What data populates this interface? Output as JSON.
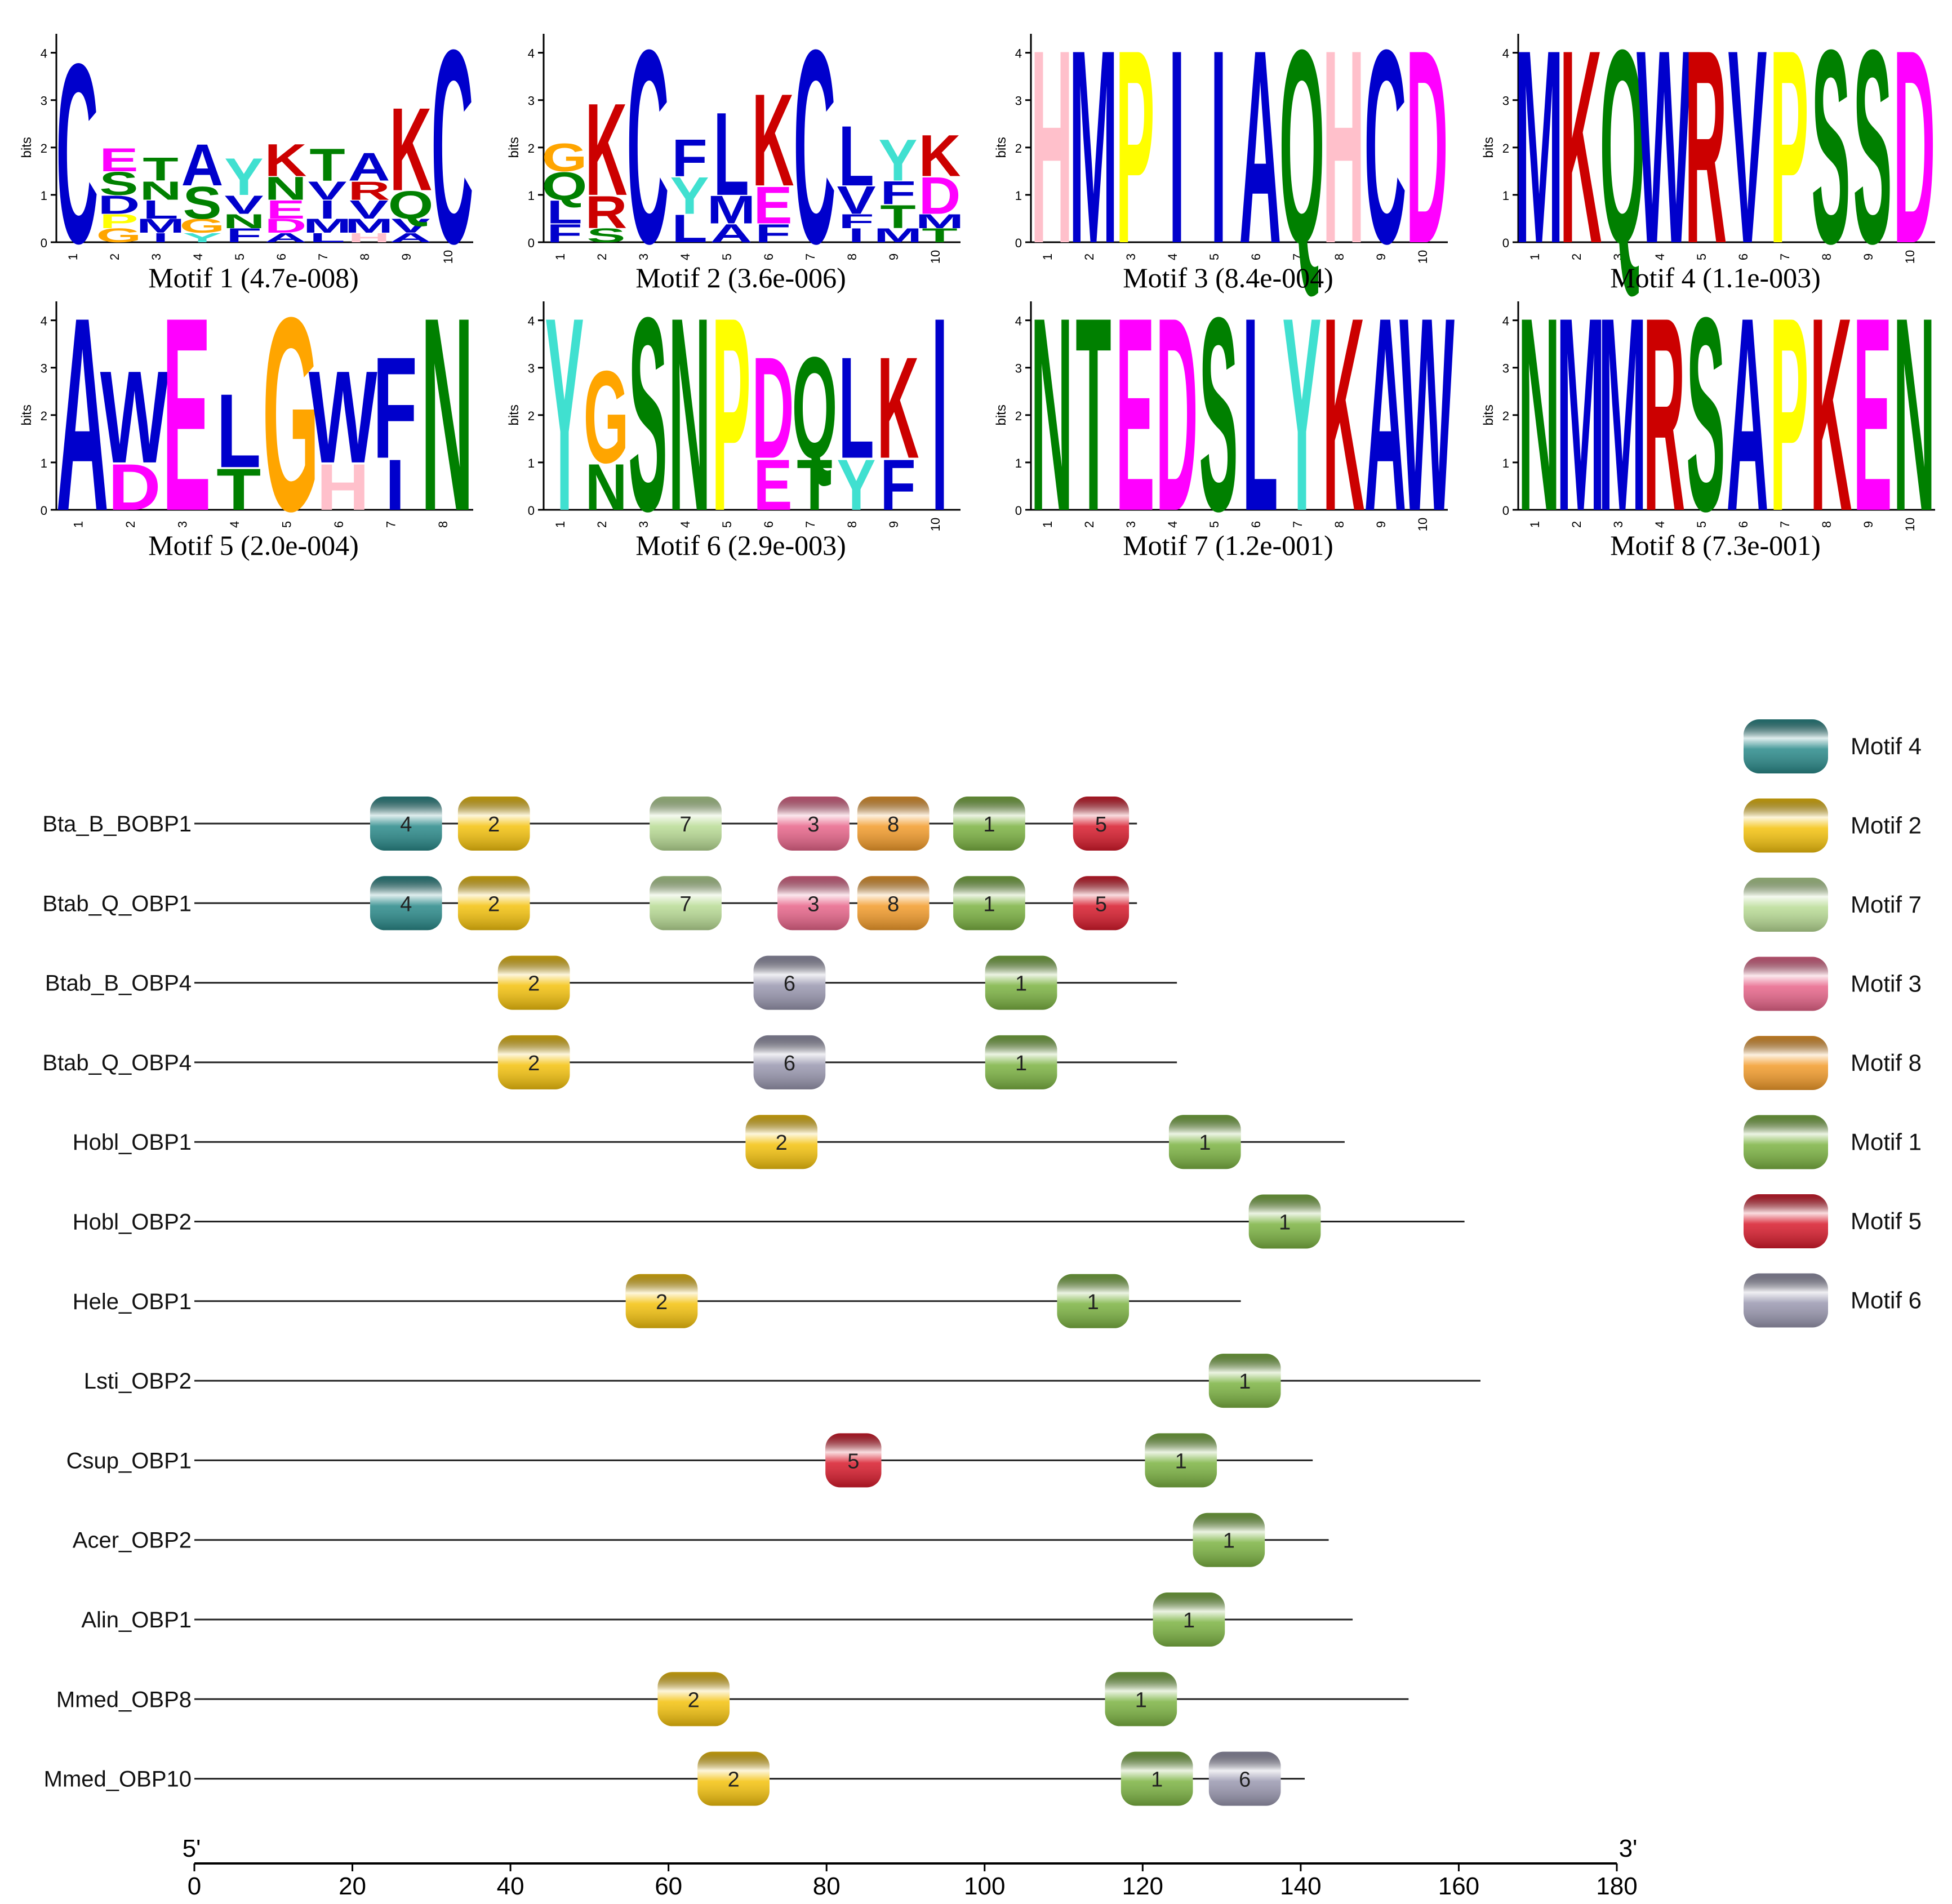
{
  "logos": [
    {
      "title": "Motif 1 (4.7e-008)",
      "length": 10,
      "ylabel": "bits",
      "yticks": [
        "0",
        "1",
        "2",
        "3",
        "4"
      ],
      "columns": [
        [
          [
            "C",
            3.9,
            "#0000cc"
          ]
        ],
        [
          [
            "S",
            0.5,
            "#008000"
          ],
          [
            "E",
            0.5,
            "#ff00ff"
          ],
          [
            "D",
            0.4,
            "#0000cc"
          ],
          [
            "G",
            0.3,
            "#ffa500"
          ],
          [
            "P",
            0.3,
            "#ffff00"
          ]
        ],
        [
          [
            "T",
            0.5,
            "#008000"
          ],
          [
            "L",
            0.4,
            "#0000cc"
          ],
          [
            "N",
            0.4,
            "#008000"
          ],
          [
            "M",
            0.3,
            "#0000cc"
          ],
          [
            "I",
            0.2,
            "#0000cc"
          ]
        ],
        [
          [
            "A",
            0.9,
            "#0000cc"
          ],
          [
            "S",
            0.7,
            "#008000"
          ],
          [
            "G",
            0.3,
            "#ffa500"
          ],
          [
            "Y",
            0.2,
            "#40e0d0"
          ]
        ],
        [
          [
            "Y",
            0.8,
            "#40e0d0"
          ],
          [
            "V",
            0.4,
            "#0000cc"
          ],
          [
            "F",
            0.3,
            "#0000cc"
          ],
          [
            "N",
            0.3,
            "#008000"
          ]
        ],
        [
          [
            "K",
            0.7,
            "#cc0000"
          ],
          [
            "N",
            0.5,
            "#008000"
          ],
          [
            "E",
            0.4,
            "#ff00ff"
          ],
          [
            "D",
            0.3,
            "#ff00ff"
          ],
          [
            "A",
            0.2,
            "#0000cc"
          ]
        ],
        [
          [
            "T",
            0.7,
            "#008000"
          ],
          [
            "I",
            0.4,
            "#0000cc"
          ],
          [
            "V",
            0.4,
            "#0000cc"
          ],
          [
            "M",
            0.3,
            "#0000cc"
          ],
          [
            "L",
            0.2,
            "#0000cc"
          ]
        ],
        [
          [
            "A",
            0.6,
            "#0000cc"
          ],
          [
            "V",
            0.4,
            "#0000cc"
          ],
          [
            "R",
            0.4,
            "#cc0000"
          ],
          [
            "M",
            0.3,
            "#0000cc"
          ],
          [
            "H",
            0.2,
            "#ffc0cb"
          ]
        ],
        [
          [
            "K",
            1.8,
            "#cc0000"
          ],
          [
            "Q",
            0.6,
            "#008000"
          ],
          [
            "V",
            0.3,
            "#0000cc"
          ],
          [
            "A",
            0.2,
            "#0000cc"
          ]
        ],
        [
          [
            "C",
            4.2,
            "#0000cc"
          ]
        ]
      ]
    },
    {
      "title": "Motif 2 (3.6e-006)",
      "length": 10,
      "ylabel": "bits",
      "yticks": [
        "0",
        "1",
        "2",
        "3",
        "4"
      ],
      "columns": [
        [
          [
            "Q",
            0.6,
            "#008000"
          ],
          [
            "L",
            0.5,
            "#0000cc"
          ],
          [
            "G",
            0.6,
            "#ffa500"
          ],
          [
            "F",
            0.4,
            "#0000cc"
          ]
        ],
        [
          [
            "K",
            2.0,
            "#cc0000"
          ],
          [
            "R",
            0.7,
            "#cc0000"
          ],
          [
            "S",
            0.3,
            "#008000"
          ]
        ],
        [
          [
            "C",
            4.2,
            "#0000cc"
          ]
        ],
        [
          [
            "Y",
            0.8,
            "#40e0d0"
          ],
          [
            "F",
            0.8,
            "#0000cc"
          ],
          [
            "L",
            0.6,
            "#0000cc"
          ]
        ],
        [
          [
            "L",
            1.8,
            "#0000cc"
          ],
          [
            "M",
            0.6,
            "#0000cc"
          ],
          [
            "A",
            0.4,
            "#0000cc"
          ]
        ],
        [
          [
            "K",
            2.0,
            "#cc0000"
          ],
          [
            "E",
            0.8,
            "#ff00ff"
          ],
          [
            "F",
            0.4,
            "#0000cc"
          ]
        ],
        [
          [
            "C",
            4.2,
            "#0000cc"
          ]
        ],
        [
          [
            "L",
            1.3,
            "#0000cc"
          ],
          [
            "V",
            0.6,
            "#0000cc"
          ],
          [
            "I",
            0.3,
            "#0000cc"
          ],
          [
            "F",
            0.3,
            "#0000cc"
          ]
        ],
        [
          [
            "Y",
            0.9,
            "#40e0d0"
          ],
          [
            "T",
            0.5,
            "#008000"
          ],
          [
            "F",
            0.5,
            "#0000cc"
          ],
          [
            "M",
            0.3,
            "#0000cc"
          ]
        ],
        [
          [
            "K",
            0.9,
            "#cc0000"
          ],
          [
            "D",
            0.8,
            "#ff00ff"
          ],
          [
            "T",
            0.3,
            "#008000"
          ],
          [
            "M",
            0.3,
            "#0000cc"
          ]
        ]
      ]
    },
    {
      "title": "Motif 3 (8.4e-004)",
      "length": 10,
      "ylabel": "bits",
      "yticks": [
        "0",
        "1",
        "2",
        "3",
        "4"
      ],
      "columns": [
        [
          [
            "H",
            4.2,
            "#ffc0cb"
          ]
        ],
        [
          [
            "M",
            4.2,
            "#0000cc"
          ]
        ],
        [
          [
            "P",
            4.2,
            "#ffff00"
          ]
        ],
        [
          [
            "I",
            4.2,
            "#0000cc"
          ]
        ],
        [
          [
            "I",
            4.2,
            "#0000cc"
          ]
        ],
        [
          [
            "A",
            4.2,
            "#0000cc"
          ]
        ],
        [
          [
            "Q",
            4.2,
            "#008000"
          ]
        ],
        [
          [
            "H",
            4.2,
            "#ffc0cb"
          ]
        ],
        [
          [
            "C",
            4.2,
            "#0000cc"
          ]
        ],
        [
          [
            "D",
            4.2,
            "#ff00ff"
          ]
        ]
      ]
    },
    {
      "title": "Motif 4 (1.1e-003)",
      "length": 10,
      "ylabel": "bits",
      "yticks": [
        "0",
        "1",
        "2",
        "3",
        "4"
      ],
      "columns": [
        [
          [
            "M",
            4.2,
            "#0000cc"
          ]
        ],
        [
          [
            "K",
            4.2,
            "#cc0000"
          ]
        ],
        [
          [
            "Q",
            4.2,
            "#008000"
          ]
        ],
        [
          [
            "W",
            4.2,
            "#0000cc"
          ]
        ],
        [
          [
            "R",
            4.2,
            "#cc0000"
          ]
        ],
        [
          [
            "V",
            4.2,
            "#0000cc"
          ]
        ],
        [
          [
            "P",
            4.2,
            "#ffff00"
          ]
        ],
        [
          [
            "S",
            4.2,
            "#008000"
          ]
        ],
        [
          [
            "S",
            4.2,
            "#008000"
          ]
        ],
        [
          [
            "D",
            4.2,
            "#ff00ff"
          ]
        ]
      ]
    },
    {
      "title": "Motif 5 (2.0e-004)",
      "length": 8,
      "ylabel": "bits",
      "yticks": [
        "0",
        "1",
        "2",
        "3",
        "4"
      ],
      "columns": [
        [
          [
            "A",
            4.2,
            "#0000cc"
          ]
        ],
        [
          [
            "W",
            2.0,
            "#0000cc"
          ],
          [
            "D",
            1.0,
            "#ff00ff"
          ]
        ],
        [
          [
            "E",
            4.2,
            "#ff00ff"
          ]
        ],
        [
          [
            "L",
            1.6,
            "#0000cc"
          ],
          [
            "T",
            0.9,
            "#008000"
          ]
        ],
        [
          [
            "G",
            4.2,
            "#ffa500"
          ]
        ],
        [
          [
            "W",
            2.0,
            "#0000cc"
          ],
          [
            "H",
            1.0,
            "#ffc0cb"
          ]
        ],
        [
          [
            "F",
            2.2,
            "#0000cc"
          ],
          [
            "I",
            1.1,
            "#0000cc"
          ]
        ],
        [
          [
            "N",
            4.2,
            "#008000"
          ]
        ]
      ]
    },
    {
      "title": "Motif 6 (2.9e-003)",
      "length": 10,
      "ylabel": "bits",
      "yticks": [
        "0",
        "1",
        "2",
        "3",
        "4"
      ],
      "columns": [
        [
          [
            "Y",
            4.2,
            "#40e0d0"
          ]
        ],
        [
          [
            "G",
            2.0,
            "#ffa500"
          ],
          [
            "N",
            1.0,
            "#008000"
          ]
        ],
        [
          [
            "S",
            4.2,
            "#008000"
          ]
        ],
        [
          [
            "N",
            4.2,
            "#008000"
          ]
        ],
        [
          [
            "P",
            4.2,
            "#ffff00"
          ]
        ],
        [
          [
            "D",
            2.2,
            "#ff00ff"
          ],
          [
            "E",
            1.1,
            "#ff00ff"
          ]
        ],
        [
          [
            "Q",
            2.2,
            "#008000"
          ],
          [
            "T",
            1.1,
            "#008000"
          ]
        ],
        [
          [
            "L",
            2.2,
            "#0000cc"
          ],
          [
            "Y",
            1.1,
            "#40e0d0"
          ]
        ],
        [
          [
            "K",
            2.2,
            "#cc0000"
          ],
          [
            "F",
            1.1,
            "#0000cc"
          ]
        ],
        [
          [
            "I",
            4.2,
            "#0000cc"
          ]
        ]
      ]
    },
    {
      "title": "Motif 7 (1.2e-001)",
      "length": 10,
      "ylabel": "bits",
      "yticks": [
        "0",
        "1",
        "2",
        "3",
        "4"
      ],
      "columns": [
        [
          [
            "N",
            4.2,
            "#008000"
          ]
        ],
        [
          [
            "T",
            4.2,
            "#008000"
          ]
        ],
        [
          [
            "E",
            4.2,
            "#ff00ff"
          ]
        ],
        [
          [
            "D",
            4.2,
            "#ff00ff"
          ]
        ],
        [
          [
            "S",
            4.2,
            "#008000"
          ]
        ],
        [
          [
            "L",
            4.2,
            "#0000cc"
          ]
        ],
        [
          [
            "Y",
            4.2,
            "#40e0d0"
          ]
        ],
        [
          [
            "K",
            4.2,
            "#cc0000"
          ]
        ],
        [
          [
            "A",
            4.2,
            "#0000cc"
          ]
        ],
        [
          [
            "W",
            4.2,
            "#0000cc"
          ]
        ]
      ]
    },
    {
      "title": "Motif 8 (7.3e-001)",
      "length": 10,
      "ylabel": "bits",
      "yticks": [
        "0",
        "1",
        "2",
        "3",
        "4"
      ],
      "columns": [
        [
          [
            "N",
            4.2,
            "#008000"
          ]
        ],
        [
          [
            "M",
            4.2,
            "#0000cc"
          ]
        ],
        [
          [
            "M",
            4.2,
            "#0000cc"
          ]
        ],
        [
          [
            "R",
            4.2,
            "#cc0000"
          ]
        ],
        [
          [
            "S",
            4.2,
            "#008000"
          ]
        ],
        [
          [
            "A",
            4.2,
            "#0000cc"
          ]
        ],
        [
          [
            "P",
            4.2,
            "#ffff00"
          ]
        ],
        [
          [
            "K",
            4.2,
            "#cc0000"
          ]
        ],
        [
          [
            "E",
            4.2,
            "#ff00ff"
          ]
        ],
        [
          [
            "N",
            4.2,
            "#008000"
          ]
        ]
      ]
    }
  ],
  "motif_colors": {
    "1": "#7cb342",
    "2": "#f4c20d",
    "3": "#e8658a",
    "4": "#2a8a8a",
    "5": "#d81b2c",
    "6": "#9a98b0",
    "7": "#b9dc95",
    "8": "#f39c2b"
  },
  "sequences": [
    {
      "name": "Bta_B_BOBP1",
      "length": 118,
      "motifs": [
        {
          "id": "4",
          "start": 22,
          "end": 31
        },
        {
          "id": "2",
          "start": 33,
          "end": 42
        },
        {
          "id": "7",
          "start": 57,
          "end": 66
        },
        {
          "id": "3",
          "start": 73,
          "end": 82
        },
        {
          "id": "8",
          "start": 83,
          "end": 92
        },
        {
          "id": "1",
          "start": 95,
          "end": 104
        },
        {
          "id": "5",
          "start": 110,
          "end": 117
        }
      ]
    },
    {
      "name": "Btab_Q_OBP1",
      "length": 118,
      "motifs": [
        {
          "id": "4",
          "start": 22,
          "end": 31
        },
        {
          "id": "2",
          "start": 33,
          "end": 42
        },
        {
          "id": "7",
          "start": 57,
          "end": 66
        },
        {
          "id": "3",
          "start": 73,
          "end": 82
        },
        {
          "id": "8",
          "start": 83,
          "end": 92
        },
        {
          "id": "1",
          "start": 95,
          "end": 104
        },
        {
          "id": "5",
          "start": 110,
          "end": 117
        }
      ]
    },
    {
      "name": "Btab_B_OBP4",
      "length": 123,
      "motifs": [
        {
          "id": "2",
          "start": 38,
          "end": 47
        },
        {
          "id": "6",
          "start": 70,
          "end": 79
        },
        {
          "id": "1",
          "start": 99,
          "end": 108
        }
      ]
    },
    {
      "name": "Btab_Q_OBP4",
      "length": 123,
      "motifs": [
        {
          "id": "2",
          "start": 38,
          "end": 47
        },
        {
          "id": "6",
          "start": 70,
          "end": 79
        },
        {
          "id": "1",
          "start": 99,
          "end": 108
        }
      ]
    },
    {
      "name": "Hobl_OBP1",
      "length": 144,
      "motifs": [
        {
          "id": "2",
          "start": 69,
          "end": 78
        },
        {
          "id": "1",
          "start": 122,
          "end": 131
        }
      ]
    },
    {
      "name": "Hobl_OBP2",
      "length": 159,
      "motifs": [
        {
          "id": "1",
          "start": 132,
          "end": 141
        }
      ]
    },
    {
      "name": "Hele_OBP1",
      "length": 131,
      "motifs": [
        {
          "id": "2",
          "start": 54,
          "end": 63
        },
        {
          "id": "1",
          "start": 108,
          "end": 117
        }
      ]
    },
    {
      "name": "Lsti_OBP2",
      "length": 161,
      "motifs": [
        {
          "id": "1",
          "start": 127,
          "end": 136
        }
      ]
    },
    {
      "name": "Csup_OBP1",
      "length": 140,
      "motifs": [
        {
          "id": "5",
          "start": 79,
          "end": 86
        },
        {
          "id": "1",
          "start": 119,
          "end": 128
        }
      ]
    },
    {
      "name": "Acer_OBP2",
      "length": 142,
      "motifs": [
        {
          "id": "1",
          "start": 125,
          "end": 134
        }
      ]
    },
    {
      "name": "Alin_OBP1",
      "length": 145,
      "motifs": [
        {
          "id": "1",
          "start": 120,
          "end": 129
        }
      ]
    },
    {
      "name": "Mmed_OBP8",
      "length": 152,
      "motifs": [
        {
          "id": "2",
          "start": 58,
          "end": 67
        },
        {
          "id": "1",
          "start": 114,
          "end": 123
        }
      ]
    },
    {
      "name": "Mmed_OBP10",
      "length": 139,
      "motifs": [
        {
          "id": "2",
          "start": 63,
          "end": 72
        },
        {
          "id": "1",
          "start": 116,
          "end": 125
        },
        {
          "id": "6",
          "start": 127,
          "end": 136
        }
      ]
    }
  ],
  "axis": {
    "label_left": "5'",
    "label_right": "3'",
    "min": 0,
    "max": 180,
    "ticks": [
      "0",
      "20",
      "40",
      "60",
      "80",
      "100",
      "120",
      "140",
      "160",
      "180"
    ]
  },
  "legend": [
    {
      "id": "4",
      "label": "Motif 4"
    },
    {
      "id": "2",
      "label": "Motif 2"
    },
    {
      "id": "7",
      "label": "Motif 7"
    },
    {
      "id": "3",
      "label": "Motif 3"
    },
    {
      "id": "8",
      "label": "Motif 8"
    },
    {
      "id": "1",
      "label": "Motif 1"
    },
    {
      "id": "5",
      "label": "Motif 5"
    },
    {
      "id": "6",
      "label": "Motif 6"
    }
  ]
}
